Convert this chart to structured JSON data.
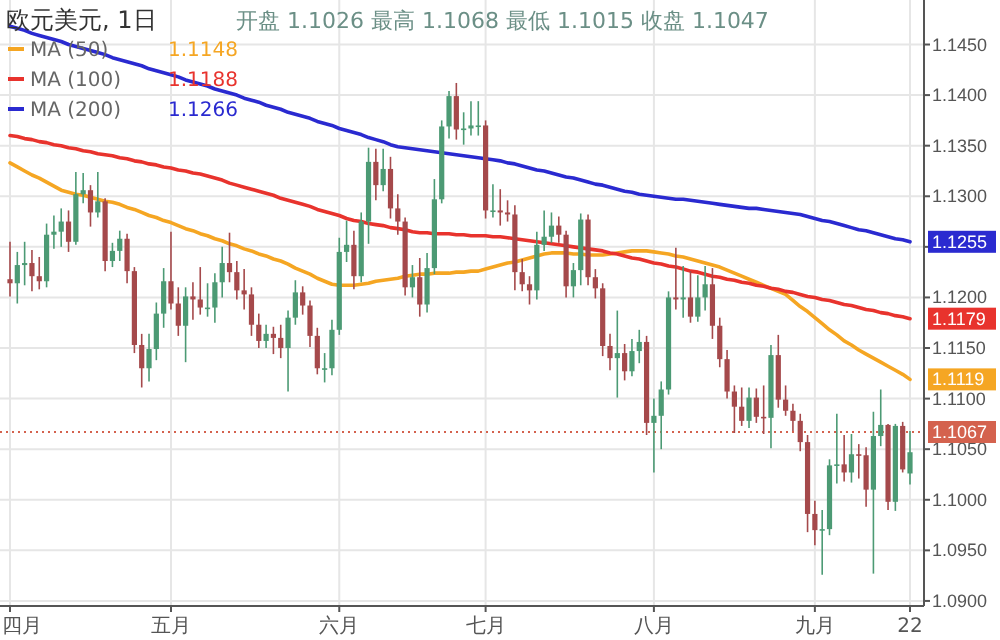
{
  "chart_data": {
    "type": "candlestick",
    "title": "欧元美元, 1日",
    "subtitle": "开盘 1.1026 最高 1.1068 最低 1.1015 收盘 1.1047",
    "annotations": [
      "1.1148",
      "1.1188",
      "1.1266"
    ],
    "categories": [
      "四月",
      null,
      null,
      null,
      null,
      null,
      null,
      null,
      null,
      null,
      null,
      null,
      null,
      null,
      null,
      null,
      null,
      null,
      null,
      null,
      null,
      null,
      "五月",
      null,
      null,
      null,
      null,
      null,
      null,
      null,
      null,
      null,
      null,
      null,
      null,
      null,
      null,
      null,
      null,
      null,
      null,
      null,
      null,
      null,
      null,
      "六月",
      null,
      null,
      null,
      null,
      null,
      null,
      null,
      null,
      null,
      null,
      null,
      null,
      null,
      null,
      null,
      null,
      null,
      null,
      null,
      "七月",
      null,
      null,
      null,
      null,
      null,
      null,
      null,
      null,
      null,
      null,
      null,
      null,
      null,
      null,
      null,
      null,
      null,
      null,
      null,
      null,
      null,
      null,
      "八月",
      null,
      null,
      null,
      null,
      null,
      null,
      null,
      null,
      null,
      null,
      null,
      null,
      null,
      null,
      null,
      null,
      null,
      null,
      null,
      null,
      null,
      "九月",
      null,
      null,
      null,
      null,
      null,
      null,
      null,
      null,
      null,
      null,
      null,
      null,
      "22"
    ],
    "ohlc": [
      [
        1.1218,
        1.1255,
        1.1201,
        1.1214
      ],
      [
        1.1214,
        1.1245,
        1.1194,
        1.1232
      ],
      [
        1.1232,
        1.1255,
        1.1212,
        1.1234
      ],
      [
        1.1234,
        1.1247,
        1.1206,
        1.1221
      ],
      [
        1.1221,
        1.124,
        1.1208,
        1.1216
      ],
      [
        1.1216,
        1.1273,
        1.121,
        1.1262
      ],
      [
        1.1262,
        1.1281,
        1.1248,
        1.1265
      ],
      [
        1.1265,
        1.1288,
        1.125,
        1.1275
      ],
      [
        1.1275,
        1.1286,
        1.1245,
        1.1255
      ],
      [
        1.1255,
        1.1324,
        1.1252,
        1.1302
      ],
      [
        1.1302,
        1.1323,
        1.1293,
        1.1306
      ],
      [
        1.1306,
        1.1311,
        1.127,
        1.1284
      ],
      [
        1.1284,
        1.1324,
        1.1279,
        1.1295
      ],
      [
        1.1295,
        1.1298,
        1.1226,
        1.1236
      ],
      [
        1.1236,
        1.1254,
        1.123,
        1.1246
      ],
      [
        1.1246,
        1.1266,
        1.1236,
        1.1258
      ],
      [
        1.1258,
        1.1263,
        1.1214,
        1.1226
      ],
      [
        1.1226,
        1.123,
        1.1145,
        1.1153
      ],
      [
        1.1153,
        1.1164,
        1.1111,
        1.113
      ],
      [
        1.113,
        1.1164,
        1.1117,
        1.1149
      ],
      [
        1.1149,
        1.1195,
        1.1138,
        1.1184
      ],
      [
        1.1184,
        1.1229,
        1.117,
        1.1216
      ],
      [
        1.1216,
        1.1265,
        1.1188,
        1.1194
      ],
      [
        1.1194,
        1.121,
        1.1162,
        1.1172
      ],
      [
        1.1172,
        1.121,
        1.1136,
        1.1201
      ],
      [
        1.1201,
        1.1215,
        1.1178,
        1.1198
      ],
      [
        1.1198,
        1.123,
        1.1183,
        1.119
      ],
      [
        1.119,
        1.1214,
        1.1181,
        1.119
      ],
      [
        1.119,
        1.1224,
        1.1175,
        1.1215
      ],
      [
        1.1215,
        1.125,
        1.12,
        1.1234
      ],
      [
        1.1234,
        1.1264,
        1.1215,
        1.1225
      ],
      [
        1.1225,
        1.1236,
        1.1198,
        1.1207
      ],
      [
        1.1207,
        1.1228,
        1.1188,
        1.1203
      ],
      [
        1.1203,
        1.121,
        1.1162,
        1.1173
      ],
      [
        1.1173,
        1.1184,
        1.115,
        1.1157
      ],
      [
        1.1157,
        1.1173,
        1.115,
        1.1164
      ],
      [
        1.1164,
        1.1171,
        1.1144,
        1.116
      ],
      [
        1.116,
        1.1173,
        1.114,
        1.115
      ],
      [
        1.115,
        1.1187,
        1.1107,
        1.118
      ],
      [
        1.118,
        1.1217,
        1.1173,
        1.1205
      ],
      [
        1.1205,
        1.1211,
        1.1183,
        1.1192
      ],
      [
        1.1192,
        1.1197,
        1.1151,
        1.1162
      ],
      [
        1.1162,
        1.117,
        1.1124,
        1.113
      ],
      [
        1.113,
        1.1145,
        1.1116,
        1.113
      ],
      [
        1.113,
        1.1178,
        1.1123,
        1.1168
      ],
      [
        1.1168,
        1.1259,
        1.1163,
        1.1245
      ],
      [
        1.1245,
        1.1276,
        1.1235,
        1.1252
      ],
      [
        1.1252,
        1.1266,
        1.1208,
        1.1221
      ],
      [
        1.1221,
        1.1284,
        1.1215,
        1.1275
      ],
      [
        1.1275,
        1.1348,
        1.1253,
        1.1334
      ],
      [
        1.1334,
        1.1347,
        1.1296,
        1.1311
      ],
      [
        1.1311,
        1.1347,
        1.1305,
        1.1327
      ],
      [
        1.1327,
        1.1339,
        1.1278,
        1.1288
      ],
      [
        1.1288,
        1.1302,
        1.1262,
        1.1275
      ],
      [
        1.1275,
        1.1279,
        1.1202,
        1.121
      ],
      [
        1.121,
        1.1232,
        1.12,
        1.122
      ],
      [
        1.122,
        1.1239,
        1.1181,
        1.1193
      ],
      [
        1.1193,
        1.1244,
        1.1185,
        1.1229
      ],
      [
        1.1229,
        1.1317,
        1.1223,
        1.1297
      ],
      [
        1.1297,
        1.1375,
        1.1293,
        1.1369
      ],
      [
        1.1369,
        1.1404,
        1.1357,
        1.1399
      ],
      [
        1.1399,
        1.1412,
        1.1356,
        1.1366
      ],
      [
        1.1366,
        1.1383,
        1.1351,
        1.1367
      ],
      [
        1.1367,
        1.1394,
        1.136,
        1.137
      ],
      [
        1.137,
        1.1394,
        1.136,
        1.137
      ],
      [
        1.137,
        1.1375,
        1.1278,
        1.1286
      ],
      [
        1.1286,
        1.1312,
        1.1279,
        1.1286
      ],
      [
        1.1286,
        1.1307,
        1.1271,
        1.1284
      ],
      [
        1.1284,
        1.1296,
        1.1275,
        1.1282
      ],
      [
        1.1282,
        1.1291,
        1.1207,
        1.1225
      ],
      [
        1.1225,
        1.1238,
        1.1206,
        1.1213
      ],
      [
        1.1213,
        1.1221,
        1.1193,
        1.1207
      ],
      [
        1.1207,
        1.1265,
        1.1198,
        1.1252
      ],
      [
        1.1252,
        1.1286,
        1.1246,
        1.126
      ],
      [
        1.126,
        1.1284,
        1.1254,
        1.1271
      ],
      [
        1.1271,
        1.128,
        1.1254,
        1.1262
      ],
      [
        1.1262,
        1.1266,
        1.12,
        1.1211
      ],
      [
        1.1211,
        1.1234,
        1.12,
        1.1227
      ],
      [
        1.1227,
        1.1283,
        1.1212,
        1.1277
      ],
      [
        1.1277,
        1.1282,
        1.1212,
        1.122
      ],
      [
        1.122,
        1.1228,
        1.1199,
        1.1209
      ],
      [
        1.1209,
        1.1214,
        1.1142,
        1.1152
      ],
      [
        1.1152,
        1.1164,
        1.1128,
        1.114
      ],
      [
        1.114,
        1.1187,
        1.1101,
        1.1145
      ],
      [
        1.1145,
        1.1154,
        1.1118,
        1.1127
      ],
      [
        1.1127,
        1.1159,
        1.1122,
        1.1147
      ],
      [
        1.1147,
        1.1168,
        1.1135,
        1.1156
      ],
      [
        1.1156,
        1.1162,
        1.1064,
        1.1076
      ],
      [
        1.1076,
        1.11,
        1.1027,
        1.1083
      ],
      [
        1.1083,
        1.1117,
        1.105,
        1.1109
      ],
      [
        1.1109,
        1.1206,
        1.1104,
        1.12
      ],
      [
        1.12,
        1.1249,
        1.1188,
        1.1198
      ],
      [
        1.1198,
        1.1231,
        1.118,
        1.12
      ],
      [
        1.12,
        1.1226,
        1.1175,
        1.1181
      ],
      [
        1.1181,
        1.1222,
        1.1176,
        1.12
      ],
      [
        1.12,
        1.1231,
        1.1187,
        1.1213
      ],
      [
        1.1213,
        1.1229,
        1.1159,
        1.1172
      ],
      [
        1.1172,
        1.118,
        1.1131,
        1.1139
      ],
      [
        1.1139,
        1.1148,
        1.11,
        1.1107
      ],
      [
        1.1107,
        1.1113,
        1.1066,
        1.1092
      ],
      [
        1.1092,
        1.1111,
        1.1073,
        1.1078
      ],
      [
        1.1078,
        1.1111,
        1.1071,
        1.1101
      ],
      [
        1.1101,
        1.111,
        1.1076,
        1.1082
      ],
      [
        1.1082,
        1.1113,
        1.1065,
        1.1081
      ],
      [
        1.1081,
        1.1153,
        1.1051,
        1.1143
      ],
      [
        1.1143,
        1.1163,
        1.1091,
        1.1099
      ],
      [
        1.1099,
        1.1113,
        1.1083,
        1.1088
      ],
      [
        1.1088,
        1.1095,
        1.1068,
        1.1078
      ],
      [
        1.1078,
        1.1085,
        1.1048,
        1.1057
      ],
      [
        1.1057,
        1.1064,
        1.0968,
        1.0986
      ],
      [
        1.0986,
        1.0999,
        1.0955,
        1.097
      ],
      [
        1.097,
        1.099,
        1.0926,
        1.0971
      ],
      [
        1.0971,
        1.104,
        1.0965,
        1.1034
      ],
      [
        1.1034,
        1.1085,
        1.1016,
        1.1035
      ],
      [
        1.1035,
        1.1064,
        1.1018,
        1.1027
      ],
      [
        1.1027,
        1.1065,
        1.1017,
        1.1045
      ],
      [
        1.1045,
        1.1055,
        1.1021,
        1.1044
      ],
      [
        1.1044,
        1.1052,
        1.0993,
        1.101
      ],
      [
        1.101,
        1.1087,
        1.0927,
        1.1063
      ],
      [
        1.1063,
        1.1109,
        1.1053,
        1.1074
      ],
      [
        1.1074,
        1.1075,
        1.099,
        1.0998
      ],
      [
        1.0998,
        1.1075,
        1.0989,
        1.1073
      ],
      [
        1.1073,
        1.1077,
        1.1027,
        1.103
      ],
      [
        1.1026,
        1.1068,
        1.1015,
        1.1047
      ]
    ],
    "series": [
      {
        "name": "MA (50)",
        "type": "line",
        "color": "#f5a623",
        "values": [
          1.1333,
          1.1329,
          1.1325,
          1.1321,
          1.1318,
          1.1314,
          1.131,
          1.1306,
          1.1304,
          1.1302,
          1.1301,
          1.1299,
          1.1297,
          1.1295,
          1.1294,
          1.1292,
          1.1289,
          1.1287,
          1.1284,
          1.1281,
          1.1279,
          1.1276,
          1.1274,
          1.1271,
          1.1268,
          1.1266,
          1.1263,
          1.1261,
          1.1258,
          1.1256,
          1.1253,
          1.1251,
          1.1248,
          1.1246,
          1.1243,
          1.1241,
          1.1238,
          1.1236,
          1.1233,
          1.1229,
          1.1226,
          1.1223,
          1.1219,
          1.1216,
          1.1213,
          1.1212,
          1.1212,
          1.1212,
          1.1213,
          1.1214,
          1.1216,
          1.1217,
          1.1218,
          1.1219,
          1.1221,
          1.1222,
          1.1223,
          1.1223,
          1.1224,
          1.1224,
          1.1224,
          1.1225,
          1.1225,
          1.1226,
          1.1226,
          1.1228,
          1.123,
          1.1232,
          1.1234,
          1.1235,
          1.1237,
          1.1239,
          1.1241,
          1.1243,
          1.1244,
          1.1244,
          1.1244,
          1.1243,
          1.1243,
          1.1242,
          1.1242,
          1.1242,
          1.1243,
          1.1244,
          1.1245,
          1.1246,
          1.1246,
          1.1246,
          1.1245,
          1.1244,
          1.1243,
          1.1241,
          1.124,
          1.1238,
          1.1236,
          1.1234,
          1.1232,
          1.123,
          1.1227,
          1.1224,
          1.1221,
          1.1218,
          1.1215,
          1.1212,
          1.1209,
          1.1206,
          1.1203,
          1.1197,
          1.1191,
          1.1186,
          1.118,
          1.1174,
          1.1168,
          1.1163,
          1.1157,
          1.1153,
          1.1148,
          1.1144,
          1.114,
          1.1136,
          1.1132,
          1.1128,
          1.1124,
          1.1119
        ],
        "value_labels": [
          null,
          null,
          null,
          null,
          null,
          null,
          null,
          null,
          null,
          null,
          null,
          null,
          null,
          null,
          null,
          null,
          null,
          null,
          null,
          null,
          null,
          null,
          null,
          null,
          null,
          null,
          null,
          null,
          null,
          null,
          null,
          null,
          null,
          null,
          null,
          null,
          null,
          null,
          null,
          null,
          null,
          null,
          null,
          null,
          null,
          null,
          null,
          null,
          null,
          null,
          null,
          null,
          null,
          null,
          null,
          null,
          null,
          null,
          null,
          null,
          null,
          null,
          null,
          null,
          null,
          null,
          null,
          null,
          null,
          null,
          null,
          null,
          null,
          null,
          null,
          null,
          null,
          null,
          null,
          null,
          null,
          null,
          null,
          null,
          null,
          null,
          null,
          null,
          null,
          null,
          null,
          null,
          null,
          null,
          null,
          null,
          null,
          null,
          null,
          null,
          null,
          null,
          null,
          null,
          null,
          null,
          null,
          null,
          null,
          null,
          null,
          null,
          null,
          null,
          null,
          null,
          null,
          null,
          null,
          null,
          null,
          null,
          null,
          "1.1119"
        ]
      },
      {
        "name": "MA (100)",
        "type": "line",
        "color": "#e8332d",
        "values": [
          1.136,
          1.1359,
          1.1357,
          1.1356,
          1.1354,
          1.1353,
          1.1351,
          1.135,
          1.1348,
          1.1347,
          1.1345,
          1.1344,
          1.1342,
          1.1341,
          1.134,
          1.1338,
          1.1337,
          1.1335,
          1.1334,
          1.1332,
          1.1331,
          1.1329,
          1.1328,
          1.1326,
          1.1325,
          1.1323,
          1.1322,
          1.132,
          1.1318,
          1.1316,
          1.1313,
          1.1311,
          1.1309,
          1.1307,
          1.1305,
          1.1303,
          1.1301,
          1.1298,
          1.1296,
          1.1294,
          1.1292,
          1.129,
          1.1287,
          1.1285,
          1.1283,
          1.1281,
          1.1278,
          1.1276,
          1.1275,
          1.1273,
          1.1272,
          1.1271,
          1.1269,
          1.1268,
          1.1267,
          1.1265,
          1.1264,
          1.1264,
          1.1263,
          1.1263,
          1.1263,
          1.1262,
          1.1262,
          1.1261,
          1.1261,
          1.1261,
          1.126,
          1.126,
          1.1259,
          1.1258,
          1.1257,
          1.1256,
          1.1255,
          1.1254,
          1.1253,
          1.1252,
          1.1251,
          1.125,
          1.1249,
          1.1248,
          1.1247,
          1.1246,
          1.1244,
          1.1243,
          1.1241,
          1.1239,
          1.1238,
          1.1236,
          1.1234,
          1.1233,
          1.1231,
          1.123,
          1.1228,
          1.1226,
          1.1225,
          1.1223,
          1.1221,
          1.122,
          1.1218,
          1.1217,
          1.1215,
          1.1214,
          1.1212,
          1.1211,
          1.1209,
          1.1208,
          1.1206,
          1.1205,
          1.1203,
          1.1201,
          1.12,
          1.1198,
          1.1197,
          1.1195,
          1.1193,
          1.1192,
          1.119,
          1.1188,
          1.1187,
          1.1185,
          1.1184,
          1.1182,
          1.1181,
          1.1179
        ],
        "value_labels": [
          null,
          null,
          null,
          null,
          null,
          null,
          null,
          null,
          null,
          null,
          null,
          null,
          null,
          null,
          null,
          null,
          null,
          null,
          null,
          null,
          null,
          null,
          null,
          null,
          null,
          null,
          null,
          null,
          null,
          null,
          null,
          null,
          null,
          null,
          null,
          null,
          null,
          null,
          null,
          null,
          null,
          null,
          null,
          null,
          null,
          null,
          null,
          null,
          null,
          null,
          null,
          null,
          null,
          null,
          null,
          null,
          null,
          null,
          null,
          null,
          null,
          null,
          null,
          null,
          null,
          null,
          null,
          null,
          null,
          null,
          null,
          null,
          null,
          null,
          null,
          null,
          null,
          null,
          null,
          null,
          null,
          null,
          null,
          null,
          null,
          null,
          null,
          null,
          null,
          null,
          null,
          null,
          null,
          null,
          null,
          null,
          null,
          null,
          null,
          null,
          null,
          null,
          null,
          null,
          null,
          null,
          null,
          null,
          null,
          null,
          null,
          null,
          null,
          null,
          null,
          null,
          null,
          null,
          null,
          null,
          null,
          null,
          null,
          "1.1179"
        ]
      },
      {
        "name": "MA (200)",
        "type": "line",
        "color": "#2a2ad0",
        "values": [
          1.1468,
          1.1466,
          1.1464,
          1.1461,
          1.1459,
          1.1457,
          1.1455,
          1.1453,
          1.145,
          1.1448,
          1.1446,
          1.1444,
          1.1442,
          1.144,
          1.1437,
          1.1435,
          1.1433,
          1.1431,
          1.1429,
          1.1426,
          1.1424,
          1.1422,
          1.142,
          1.1418,
          1.1415,
          1.1413,
          1.1411,
          1.1409,
          1.1406,
          1.1404,
          1.1402,
          1.14,
          1.1397,
          1.1395,
          1.1393,
          1.139,
          1.1388,
          1.1386,
          1.1383,
          1.1381,
          1.1379,
          1.1377,
          1.1374,
          1.1372,
          1.137,
          1.1367,
          1.1365,
          1.1363,
          1.1361,
          1.1358,
          1.1356,
          1.1354,
          1.1351,
          1.1349,
          1.1348,
          1.1347,
          1.1346,
          1.1345,
          1.1344,
          1.1343,
          1.1342,
          1.1341,
          1.134,
          1.1339,
          1.1338,
          1.1337,
          1.1336,
          1.1335,
          1.1333,
          1.1332,
          1.133,
          1.1328,
          1.1326,
          1.1325,
          1.1323,
          1.1321,
          1.1319,
          1.1318,
          1.1316,
          1.1314,
          1.1312,
          1.1311,
          1.1309,
          1.1307,
          1.1305,
          1.1304,
          1.1302,
          1.1301,
          1.13,
          1.1299,
          1.1298,
          1.1297,
          1.1297,
          1.1296,
          1.1295,
          1.1294,
          1.1293,
          1.1292,
          1.1291,
          1.129,
          1.1289,
          1.1288,
          1.1288,
          1.1287,
          1.1286,
          1.1285,
          1.1284,
          1.1283,
          1.1282,
          1.128,
          1.1278,
          1.1276,
          1.1275,
          1.1273,
          1.1271,
          1.1269,
          1.1267,
          1.1266,
          1.1264,
          1.1262,
          1.126,
          1.1258,
          1.1257,
          1.1255
        ],
        "value_labels": [
          null,
          null,
          null,
          null,
          null,
          null,
          null,
          null,
          null,
          null,
          null,
          null,
          null,
          null,
          null,
          null,
          null,
          null,
          null,
          null,
          null,
          null,
          null,
          null,
          null,
          null,
          null,
          null,
          null,
          null,
          null,
          null,
          null,
          null,
          null,
          null,
          null,
          null,
          null,
          null,
          null,
          null,
          null,
          null,
          null,
          null,
          null,
          null,
          null,
          null,
          null,
          null,
          null,
          null,
          null,
          null,
          null,
          null,
          null,
          null,
          null,
          null,
          null,
          null,
          null,
          null,
          null,
          null,
          null,
          null,
          null,
          null,
          null,
          null,
          null,
          null,
          null,
          null,
          null,
          null,
          null,
          null,
          null,
          null,
          null,
          null,
          null,
          null,
          null,
          null,
          null,
          null,
          null,
          null,
          null,
          null,
          null,
          null,
          null,
          null,
          null,
          null,
          null,
          null,
          null,
          null,
          null,
          null,
          null,
          null,
          null,
          null,
          null,
          null,
          null,
          null,
          null,
          null,
          null,
          null,
          null,
          null,
          null,
          "1.1255"
        ]
      }
    ],
    "ref_lines": [
      {
        "axis": "y",
        "value": 1.1067,
        "label": "1.1067",
        "color": "#d4624e",
        "line_style": "dotted"
      }
    ],
    "ylim": [
      1.0895,
      1.1494
    ],
    "yticks": [
      {
        "value": 1.09,
        "label": "1.0900"
      },
      {
        "value": 1.095,
        "label": "1.0950"
      },
      {
        "value": 1.1,
        "label": "1.1000"
      },
      {
        "value": 1.105,
        "label": "1.1050"
      },
      {
        "value": 1.11,
        "label": "1.1100"
      },
      {
        "value": 1.115,
        "label": "1.1150"
      },
      {
        "value": 1.12,
        "label": "1.1200"
      },
      {
        "value": 1.125,
        "label": null
      },
      {
        "value": 1.13,
        "label": "1.1300"
      },
      {
        "value": 1.135,
        "label": "1.1350"
      },
      {
        "value": 1.14,
        "label": "1.1400"
      },
      {
        "value": 1.145,
        "label": "1.1450"
      }
    ],
    "grid": true,
    "legend": "top left"
  }
}
